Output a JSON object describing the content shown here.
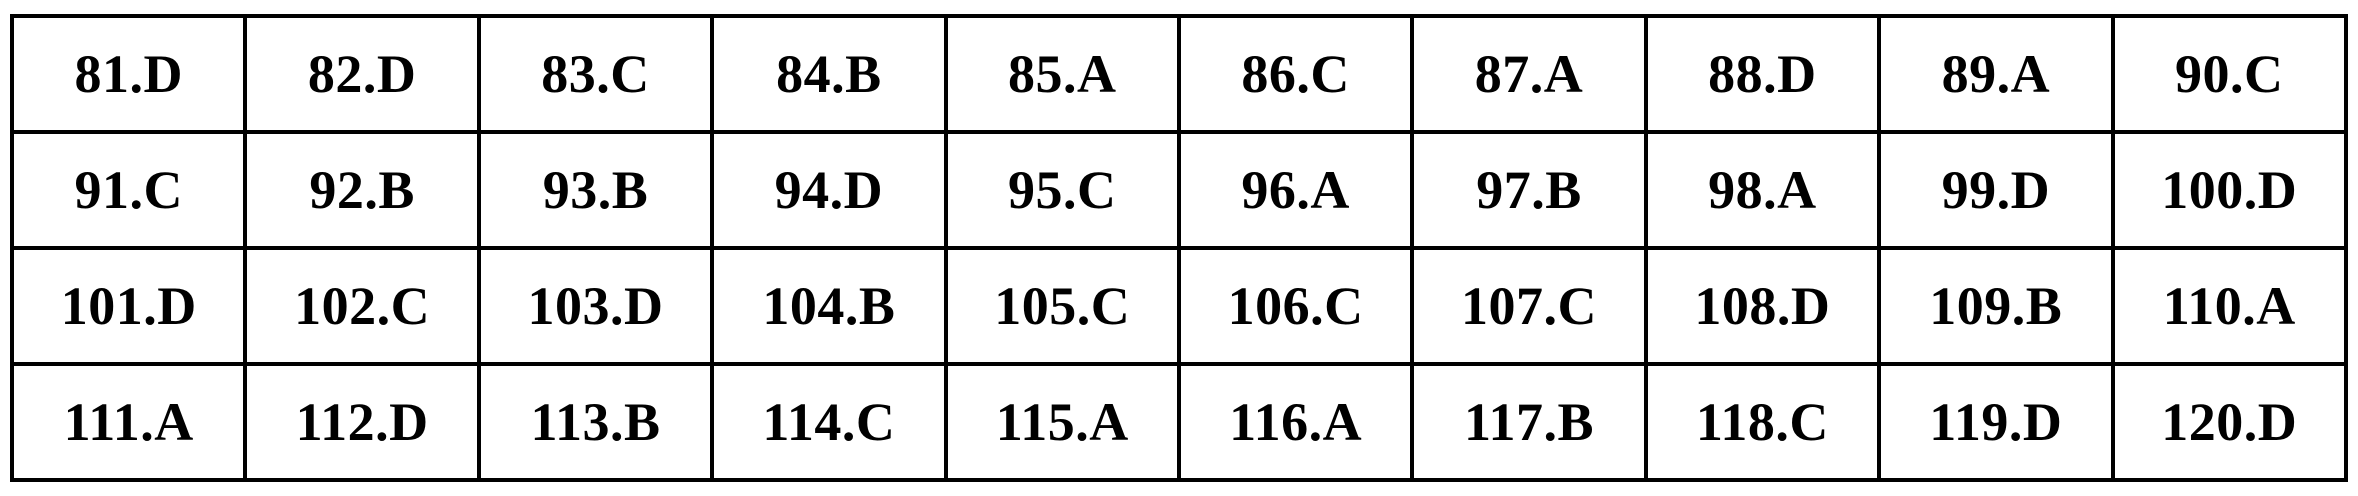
{
  "answer_table": {
    "description": "Exam answer key grid, questions 81-120",
    "border_color": "#000000",
    "text_color": "#000000",
    "background_color": "#ffffff",
    "rows": [
      [
        "81.D",
        "82.D",
        "83.C",
        "84.B",
        "85.A",
        "86.C",
        "87.A",
        "88.D",
        "89.A",
        "90.C"
      ],
      [
        "91.C",
        "92.B",
        "93.B",
        "94.D",
        "95.C",
        "96.A",
        "97.B",
        "98.A",
        "99.D",
        "100.D"
      ],
      [
        "101.D",
        "102.C",
        "103.D",
        "104.B",
        "105.C",
        "106.C",
        "107.C",
        "108.D",
        "109.B",
        "110.A"
      ],
      [
        "111.A",
        "112.D",
        "113.B",
        "114.C",
        "115.A",
        "116.A",
        "117.B",
        "118.C",
        "119.D",
        "120.D"
      ]
    ]
  }
}
